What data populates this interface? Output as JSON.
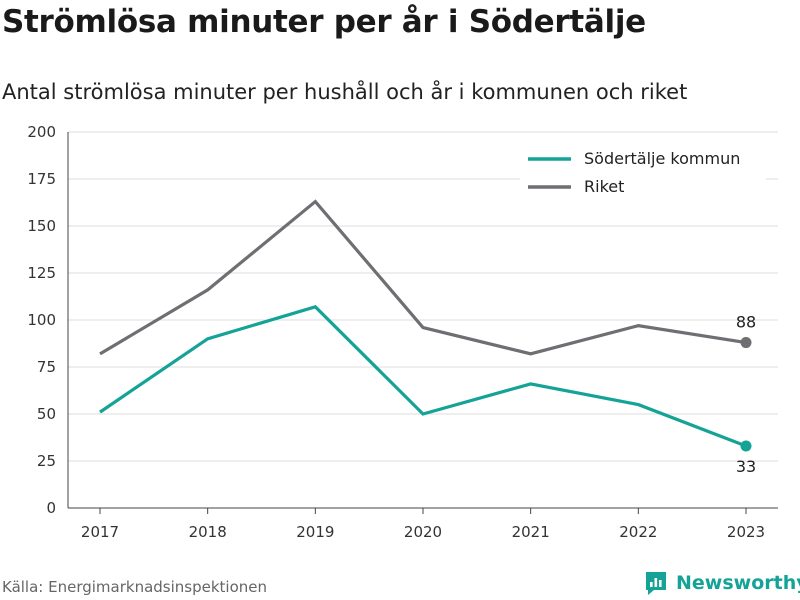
{
  "title": "Strömlösa minuter per år i Södertälje",
  "subtitle": "Antal strömlösa minuter per hushåll och år i kommunen och riket",
  "source": "Källa: Energimarknadsinspektionen",
  "brand": {
    "name": "Newsworthy",
    "icon": "newsworthy-logo-icon",
    "color": "#14a396"
  },
  "chart_data": {
    "type": "line",
    "x": [
      "2017",
      "2018",
      "2019",
      "2020",
      "2021",
      "2022",
      "2023"
    ],
    "ylim": [
      0,
      200
    ],
    "yticks": [
      "0",
      "25",
      "50",
      "75",
      "100",
      "125",
      "150",
      "175",
      "200"
    ],
    "grid": true,
    "legend_position": "top-right",
    "series": [
      {
        "name": "Södertälje kommun",
        "color": "#14a396",
        "values": [
          51,
          90,
          107,
          50,
          66,
          55,
          33
        ],
        "end_label": "33"
      },
      {
        "name": "Riket",
        "color": "#6e6e73",
        "values": [
          82,
          116,
          163,
          96,
          82,
          97,
          88
        ],
        "end_label": "88"
      }
    ]
  }
}
